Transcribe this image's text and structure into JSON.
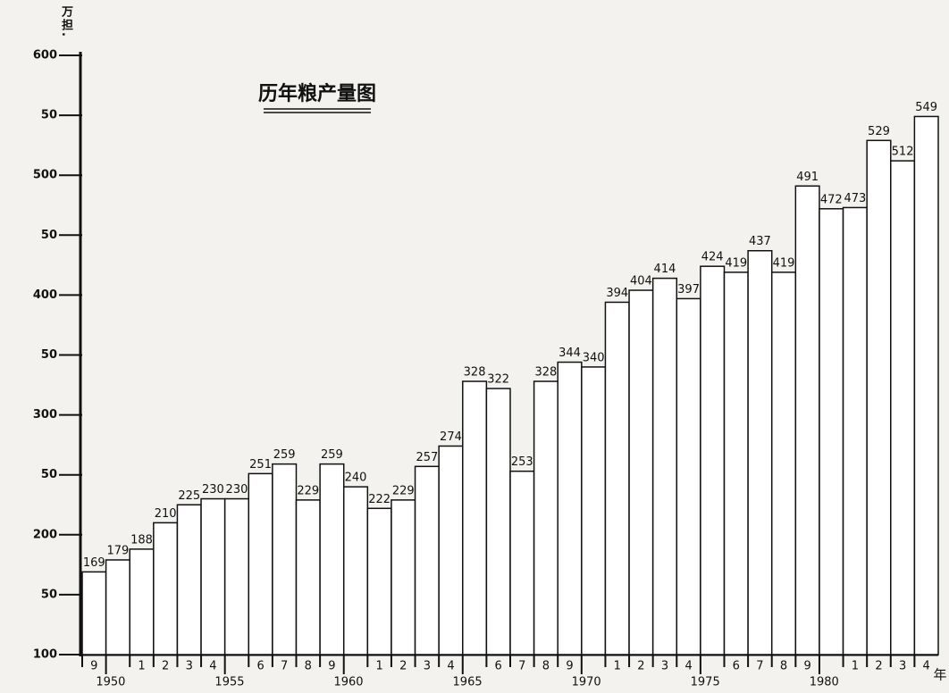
{
  "chart_data": {
    "type": "bar",
    "title": "历年粮产量图",
    "ylabel": "万担.",
    "xlabel": "年",
    "categories": [
      "9",
      "1950",
      "1",
      "2",
      "3",
      "4",
      "1955",
      "6",
      "7",
      "8",
      "9",
      "1960",
      "1",
      "2",
      "3",
      "4",
      "1965",
      "6",
      "7",
      "8",
      "9",
      "1970",
      "1",
      "2",
      "3",
      "4",
      "1975",
      "6",
      "7",
      "8",
      "9",
      "1980",
      "1",
      "2",
      "3",
      "4"
    ],
    "values": [
      169,
      179,
      188,
      210,
      225,
      230,
      230,
      251,
      259,
      229,
      259,
      240,
      222,
      229,
      257,
      274,
      328,
      322,
      253,
      328,
      344,
      340,
      394,
      404,
      414,
      397,
      424,
      419,
      437,
      419,
      491,
      472,
      473,
      529,
      512,
      549
    ],
    "color": "#ffffff",
    "ylim": [
      100,
      600
    ],
    "yticks": [
      100,
      {
        "value": 150,
        "label": "50"
      },
      200,
      {
        "value": 250,
        "label": "50"
      },
      300,
      {
        "value": 350,
        "label": "50"
      },
      400,
      {
        "value": 450,
        "label": "50"
      },
      500,
      {
        "value": 550,
        "label": "50"
      },
      600
    ],
    "grid": false
  }
}
